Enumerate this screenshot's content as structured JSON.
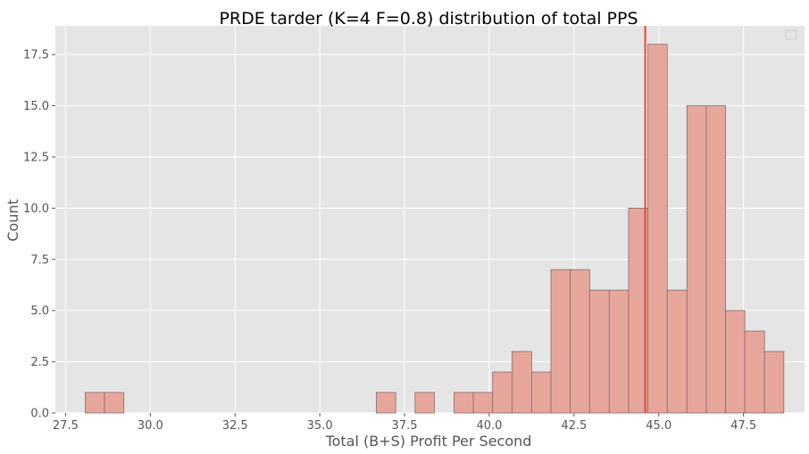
{
  "chart_data": {
    "type": "bar",
    "title": "PRDE tarder (K=4 F=0.8) distribution of total PPS",
    "xlabel": "Total (B+S) Profit Per Second",
    "ylabel": "Count",
    "xlim": [
      27.2,
      49.3
    ],
    "ylim": [
      0,
      18.9
    ],
    "grid": true,
    "legend": "top-right (empty)",
    "colors": {
      "plot_background": "#E5E5E5",
      "bar_fill": "#E7A69C",
      "bar_edge": "#7F6F6A",
      "mean_line": "#E24A33",
      "grid": "#FFFFFF"
    },
    "xticks": [
      "27.5",
      "30.0",
      "32.5",
      "35.0",
      "37.5",
      "40.0",
      "42.5",
      "45.0",
      "47.5"
    ],
    "yticks": [
      "0.0",
      "2.5",
      "5.0",
      "7.5",
      "10.0",
      "12.5",
      "15.0",
      "17.5"
    ],
    "mean_line_x": 44.6,
    "bins": [
      {
        "x0": 28.08,
        "x1": 28.65,
        "count": 1
      },
      {
        "x0": 28.65,
        "x1": 29.22,
        "count": 1
      },
      {
        "x0": 36.67,
        "x1": 37.24,
        "count": 1
      },
      {
        "x0": 37.81,
        "x1": 38.38,
        "count": 1
      },
      {
        "x0": 38.96,
        "x1": 39.53,
        "count": 1
      },
      {
        "x0": 39.53,
        "x1": 40.1,
        "count": 1
      },
      {
        "x0": 40.1,
        "x1": 40.67,
        "count": 2
      },
      {
        "x0": 40.67,
        "x1": 41.25,
        "count": 3
      },
      {
        "x0": 41.25,
        "x1": 41.82,
        "count": 2
      },
      {
        "x0": 41.82,
        "x1": 42.39,
        "count": 7
      },
      {
        "x0": 42.39,
        "x1": 42.96,
        "count": 7
      },
      {
        "x0": 42.96,
        "x1": 43.54,
        "count": 6
      },
      {
        "x0": 43.54,
        "x1": 44.11,
        "count": 6
      },
      {
        "x0": 44.11,
        "x1": 44.68,
        "count": 10
      },
      {
        "x0": 44.68,
        "x1": 45.25,
        "count": 18
      },
      {
        "x0": 45.25,
        "x1": 45.83,
        "count": 6
      },
      {
        "x0": 45.83,
        "x1": 46.4,
        "count": 15
      },
      {
        "x0": 46.4,
        "x1": 46.97,
        "count": 15
      },
      {
        "x0": 46.97,
        "x1": 47.54,
        "count": 5
      },
      {
        "x0": 47.54,
        "x1": 48.12,
        "count": 4
      },
      {
        "x0": 48.12,
        "x1": 48.69,
        "count": 3
      }
    ]
  }
}
